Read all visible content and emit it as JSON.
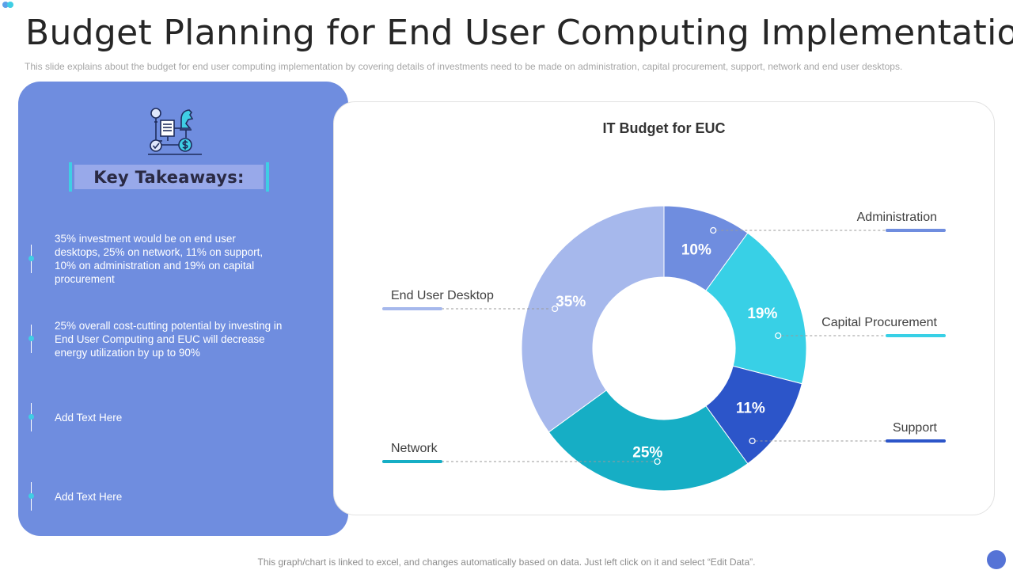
{
  "slide": {
    "title": "Budget Planning for End User Computing Implementation",
    "subtitle": "This slide explains about the budget for end user computing implementation by covering details of investments need to be made on administration, capital procurement, support, network and end user desktops.",
    "footer": "This graph/chart is linked to excel, and changes automatically based on data. Just left click on it and select “Edit Data”."
  },
  "colors": {
    "panel": "#6f8ddf",
    "accent_cyan": "#3fcee4",
    "corner_dot_1": "#5da0e8",
    "corner_dot_2": "#3fcee4",
    "corner_circle": "#5573d6"
  },
  "takeaways": {
    "icon": "strategy-icon",
    "heading": "Key Takeaways:",
    "items": [
      {
        "text": "35% investment would be on end user desktops, 25% on network, 11% on support, 10% on administration and 19% on capital procurement"
      },
      {
        "text": "25% overall cost-cutting potential by investing in End User Computing and EUC will decrease energy utilization by up to 90%"
      },
      {
        "text": "Add Text Here"
      },
      {
        "text": "Add Text Here"
      }
    ]
  },
  "chart_data": {
    "type": "pie",
    "variant": "donut",
    "title": "IT Budget for EUC",
    "value_format": "percent",
    "start_angle_deg": 0,
    "direction": "clockwise",
    "legend_placement": "leader-lines",
    "slices": [
      {
        "label": "Administration",
        "value": 10,
        "display": "10%",
        "color": "#6f8ddf",
        "side": "right"
      },
      {
        "label": "Capital Procurement",
        "value": 19,
        "display": "19%",
        "color": "#38d0e6",
        "side": "right"
      },
      {
        "label": "Support",
        "value": 11,
        "display": "11%",
        "color": "#2c55c9",
        "side": "right"
      },
      {
        "label": "Network",
        "value": 25,
        "display": "25%",
        "color": "#16aec5",
        "side": "left"
      },
      {
        "label": "End User Desktop",
        "value": 35,
        "display": "35%",
        "color": "#a6b8ec",
        "side": "left"
      }
    ]
  }
}
